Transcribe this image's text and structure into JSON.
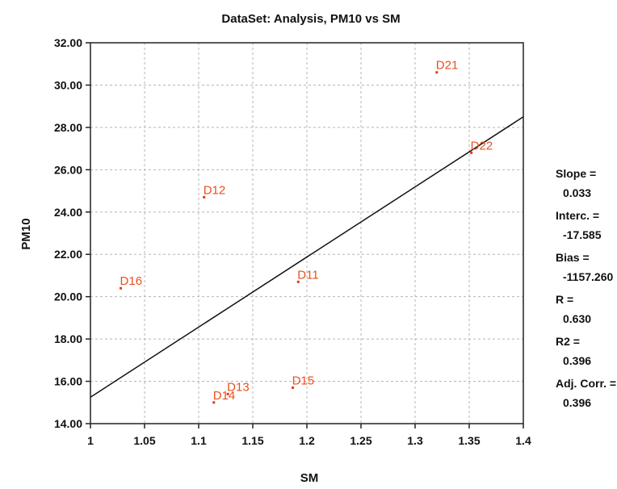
{
  "chart_data": {
    "type": "scatter",
    "title": "DataSet: Analysis, PM10 vs SM",
    "xlabel": "SM",
    "ylabel": "PM10",
    "xlim": [
      1,
      1.4
    ],
    "ylim": [
      14,
      32
    ],
    "x_ticks": [
      "1",
      "1.05",
      "1.1",
      "1.15",
      "1.2",
      "1.25",
      "1.3",
      "1.35",
      "1.4"
    ],
    "y_ticks": [
      "14.00",
      "16.00",
      "18.00",
      "20.00",
      "22.00",
      "24.00",
      "26.00",
      "28.00",
      "30.00",
      "32.00"
    ],
    "grid": true,
    "points": [
      {
        "label": "D21",
        "x": 1.32,
        "y": 30.6
      },
      {
        "label": "D22",
        "x": 1.352,
        "y": 26.8
      },
      {
        "label": "D12",
        "x": 1.105,
        "y": 24.7
      },
      {
        "label": "D11",
        "x": 1.192,
        "y": 20.7
      },
      {
        "label": "D16",
        "x": 1.028,
        "y": 20.4
      },
      {
        "label": "D15",
        "x": 1.187,
        "y": 15.7
      },
      {
        "label": "D13",
        "x": 1.127,
        "y": 15.4
      },
      {
        "label": "D14",
        "x": 1.114,
        "y": 15.0
      }
    ],
    "fit_line": {
      "x": [
        1,
        1.4
      ],
      "y": [
        15.25,
        28.5
      ]
    },
    "stats": [
      {
        "label": "Slope =",
        "value": "0.033"
      },
      {
        "label": "Interc. =",
        "value": "-17.585"
      },
      {
        "label": "Bias =",
        "value": "-1157.260"
      },
      {
        "label": "R =",
        "value": "0.630"
      },
      {
        "label": "R2 =",
        "value": "0.396"
      },
      {
        "label": "Adj. Corr. =",
        "value": "0.396"
      }
    ],
    "colors": {
      "point": "#e03a1a",
      "label": "#e8501e",
      "line": "#111111",
      "grid": "#b5b5b5"
    }
  }
}
